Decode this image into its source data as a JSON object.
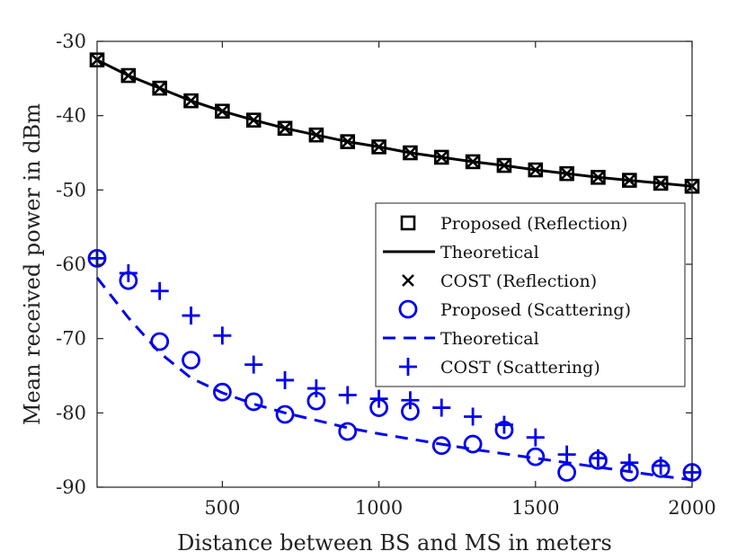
{
  "chart_data": {
    "type": "line",
    "title": "",
    "xlabel": "Distance between BS and MS in meters",
    "ylabel": "Mean received power in dBm",
    "xlim": [
      100,
      2000
    ],
    "ylim": [
      -90,
      -30
    ],
    "xticks": [
      500,
      1000,
      1500,
      2000
    ],
    "xtick_labels": [
      "500",
      "1000",
      "1500",
      "2000"
    ],
    "yticks": [
      -90,
      -80,
      -70,
      -60,
      -50,
      -40,
      -30
    ],
    "ytick_labels": [
      "-90",
      "-80",
      "-70",
      "-60",
      "-50",
      "-40",
      "-30"
    ],
    "grid": false,
    "legend_position": "right",
    "x": [
      100,
      200,
      300,
      400,
      500,
      600,
      700,
      800,
      900,
      1000,
      1100,
      1200,
      1300,
      1400,
      1500,
      1600,
      1700,
      1800,
      1900,
      2000
    ],
    "series": [
      {
        "name": "Proposed (Reflection)",
        "style": "marker-square",
        "color": "#000000",
        "values": [
          -32.5,
          -34.6,
          -36.3,
          -38.0,
          -39.4,
          -40.6,
          -41.7,
          -42.6,
          -43.5,
          -44.2,
          -45.0,
          -45.6,
          -46.2,
          -46.7,
          -47.3,
          -47.8,
          -48.3,
          -48.7,
          -49.1,
          -49.5
        ]
      },
      {
        "name": "Theoretical",
        "style": "solid",
        "color": "#000000",
        "values": [
          -32.5,
          -34.6,
          -36.3,
          -38.0,
          -39.4,
          -40.6,
          -41.7,
          -42.6,
          -43.5,
          -44.2,
          -45.0,
          -45.6,
          -46.2,
          -46.7,
          -47.3,
          -47.8,
          -48.3,
          -48.7,
          -49.1,
          -49.5
        ]
      },
      {
        "name": "COST (Reflection)",
        "style": "marker-x",
        "color": "#000000",
        "values": [
          -32.5,
          -34.6,
          -36.3,
          -38.0,
          -39.4,
          -40.6,
          -41.7,
          -42.6,
          -43.5,
          -44.2,
          -45.0,
          -45.6,
          -46.2,
          -46.7,
          -47.3,
          -47.8,
          -48.3,
          -48.7,
          -49.1,
          -49.5
        ]
      },
      {
        "name": "Proposed (Scattering)",
        "style": "marker-circle",
        "color": "#0000ee",
        "values": [
          -59.2,
          -62.2,
          -70.4,
          -72.9,
          -77.2,
          -78.5,
          -80.2,
          -78.4,
          -82.5,
          -79.3,
          -79.8,
          -84.4,
          -84.2,
          -82.3,
          -85.9,
          -88.0,
          -86.4,
          -88.0,
          -87.5,
          -88.0
        ]
      },
      {
        "name": "Theoretical",
        "style": "dashed",
        "color": "#0000ee",
        "values": [
          -61.8,
          -67.2,
          -71.9,
          -75.3,
          -77.3,
          -78.8,
          -80.0,
          -81.0,
          -82.0,
          -82.8,
          -83.5,
          -84.2,
          -84.9,
          -85.5,
          -86.1,
          -86.7,
          -87.3,
          -87.9,
          -88.5,
          -89.0
        ]
      },
      {
        "name": "COST (Scattering)",
        "style": "marker-plus",
        "color": "#0000ee",
        "values": [
          -59.2,
          -61.2,
          -63.6,
          -66.9,
          -69.6,
          -73.5,
          -75.6,
          -76.7,
          -77.6,
          -78.1,
          -78.3,
          -79.3,
          -80.5,
          -81.6,
          -83.3,
          -85.6,
          -86.1,
          -86.7,
          -87.1,
          -88.0
        ]
      }
    ]
  }
}
